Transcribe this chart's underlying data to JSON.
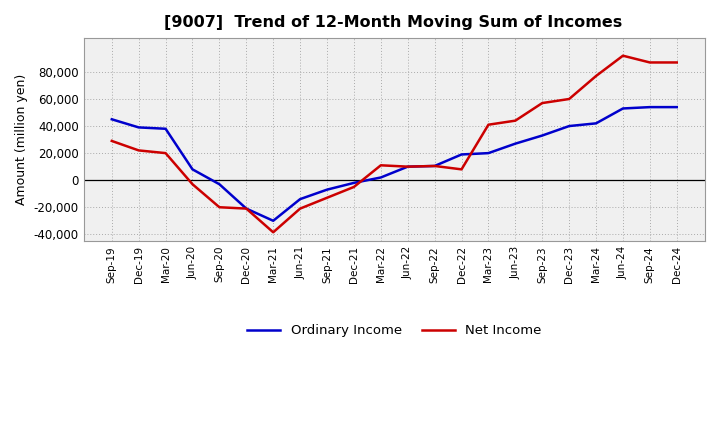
{
  "title": "[9007]  Trend of 12-Month Moving Sum of Incomes",
  "ylabel": "Amount (million yen)",
  "background_color": "#ffffff",
  "plot_bg_color": "#f0f0f0",
  "grid_color": "#aaaaaa",
  "ylim": [
    -45000,
    105000
  ],
  "yticks": [
    -40000,
    -20000,
    0,
    20000,
    40000,
    60000,
    80000
  ],
  "x_labels": [
    "Sep-19",
    "Dec-19",
    "Mar-20",
    "Jun-20",
    "Sep-20",
    "Dec-20",
    "Mar-21",
    "Jun-21",
    "Sep-21",
    "Dec-21",
    "Mar-22",
    "Jun-22",
    "Sep-22",
    "Dec-22",
    "Mar-23",
    "Jun-23",
    "Sep-23",
    "Dec-23",
    "Mar-24",
    "Jun-24",
    "Sep-24",
    "Dec-24"
  ],
  "ordinary_income": [
    45000,
    39000,
    38000,
    8000,
    -3000,
    -21000,
    -30000,
    -14000,
    -7000,
    -2000,
    2000,
    10000,
    10500,
    19000,
    20000,
    27000,
    33000,
    40000,
    42000,
    53000,
    54000,
    54000
  ],
  "net_income": [
    29000,
    22000,
    20000,
    -3000,
    -20000,
    -21000,
    -38500,
    -21000,
    -13000,
    -5000,
    11000,
    10000,
    10500,
    8000,
    41000,
    44000,
    57000,
    60000,
    77000,
    92000,
    87000,
    87000
  ],
  "ordinary_color": "#0000cc",
  "net_color": "#cc0000",
  "line_width": 1.8
}
